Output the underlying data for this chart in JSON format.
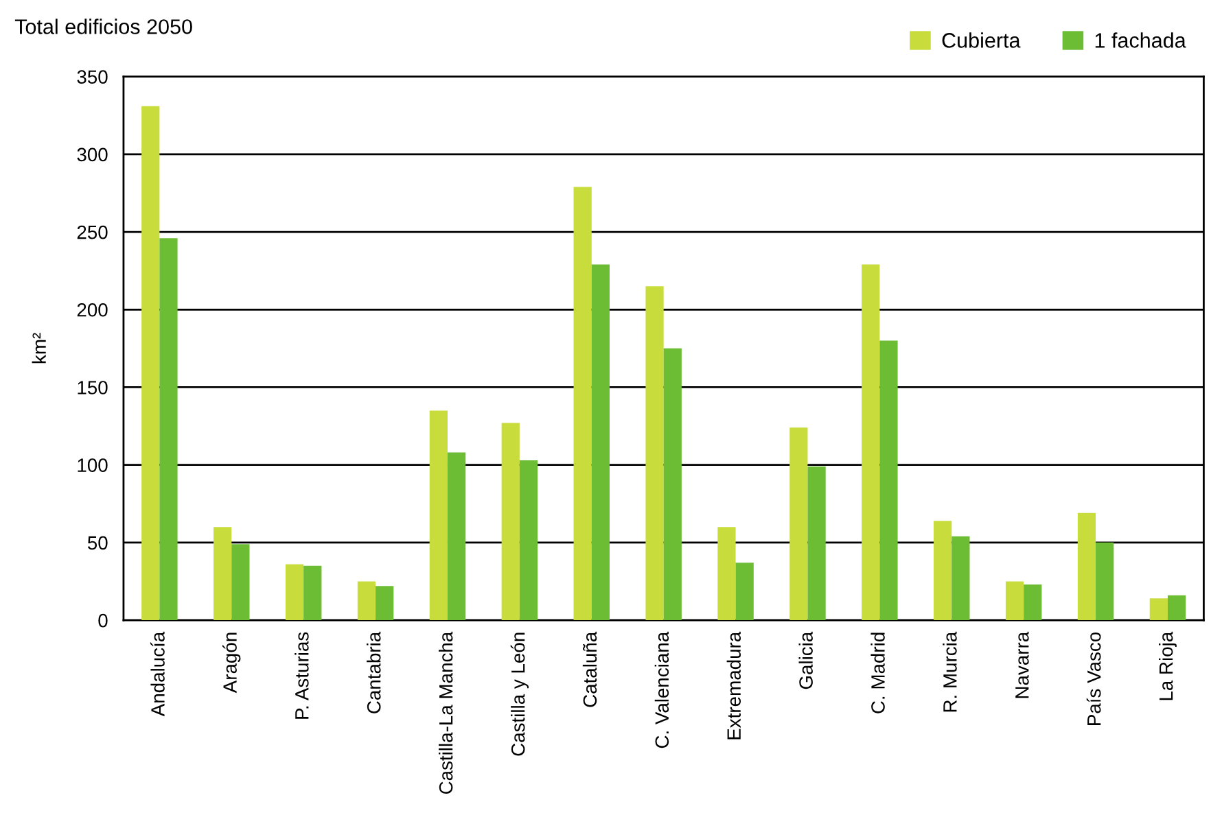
{
  "chart_data": {
    "type": "bar",
    "title": "Total edificios 2050",
    "ylabel": "km²",
    "categories": [
      "Andalucía",
      "Aragón",
      "P. Asturias",
      "Cantabria",
      "Castilla-La Mancha",
      "Castilla y León",
      "Cataluña",
      "C. Valenciana",
      "Extremadura",
      "Galicia",
      "C. Madrid",
      "R. Murcia",
      "Navarra",
      "País Vasco",
      "La Rioja"
    ],
    "series": [
      {
        "name": "Cubierta",
        "color": "#c8dc3c",
        "values": [
          331,
          60,
          36,
          25,
          135,
          127,
          279,
          215,
          60,
          124,
          229,
          64,
          25,
          69,
          14
        ]
      },
      {
        "name": "1 fachada",
        "color": "#6cbc34",
        "values": [
          246,
          49,
          35,
          22,
          108,
          103,
          229,
          175,
          37,
          99,
          180,
          54,
          23,
          50,
          16
        ]
      }
    ],
    "ylim": [
      0,
      350
    ],
    "yticks": [
      0,
      50,
      100,
      150,
      200,
      250,
      300,
      350
    ],
    "grid": "y",
    "legend": "top right"
  }
}
